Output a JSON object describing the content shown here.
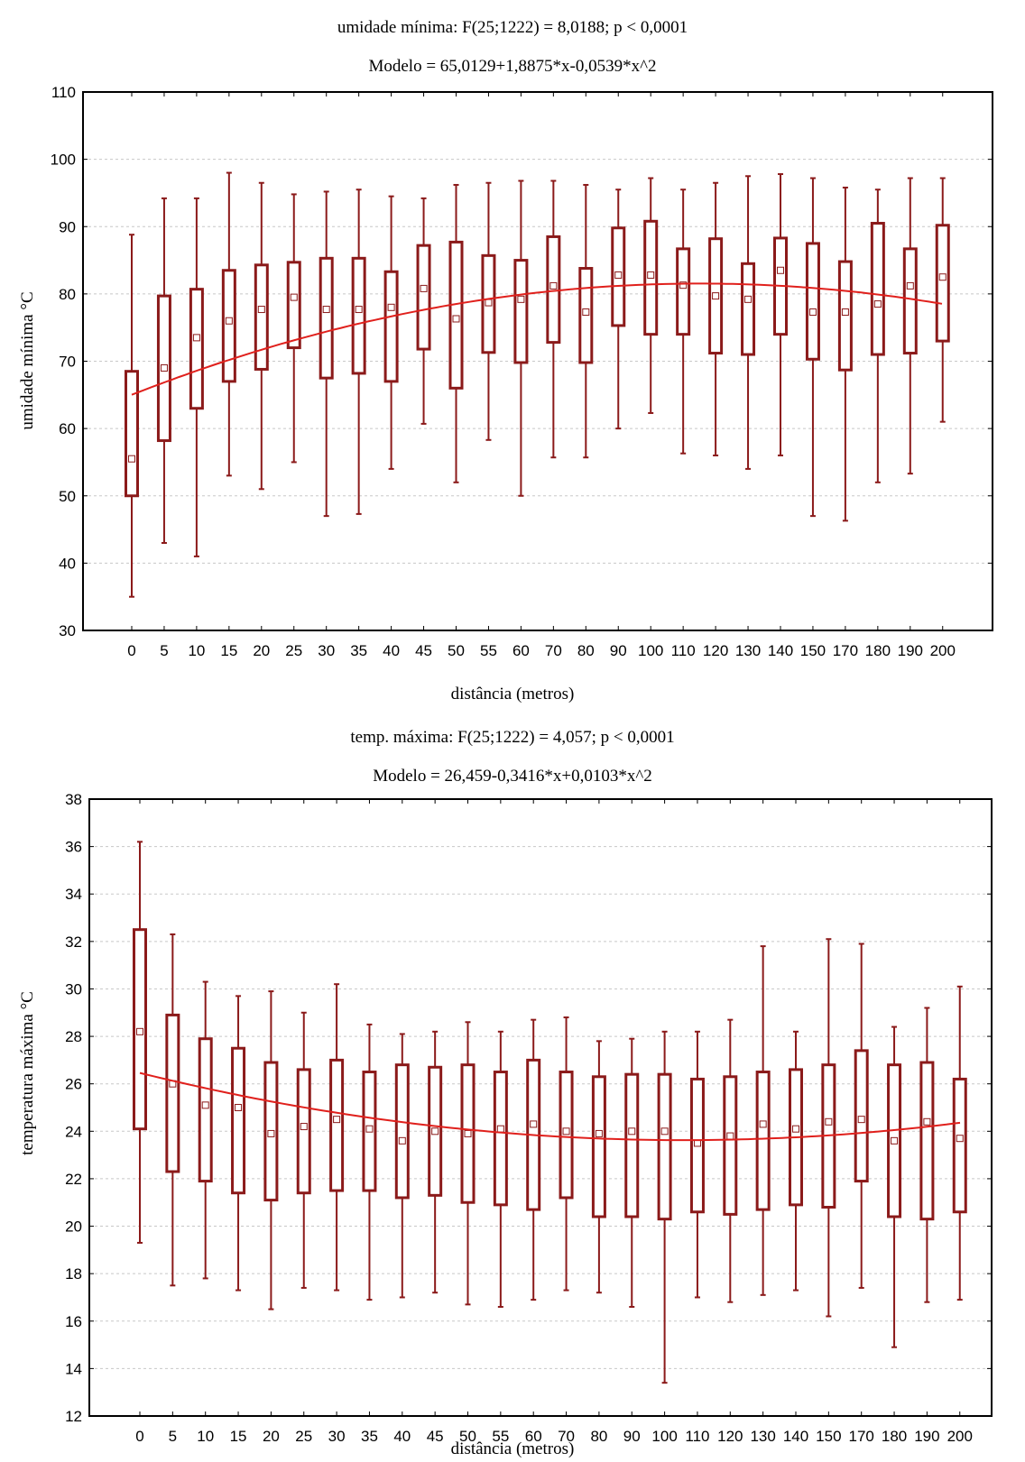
{
  "chart_data": [
    {
      "type": "box",
      "title": "umidade mínima:   F(25;1222) = 8,0188; p < 0,0001",
      "subtitle": "Modelo = 65,0129+1,8875*x-0,0539*x^2",
      "xlabel": "distância (metros)",
      "ylabel": "umidade mínima °C",
      "ylim": [
        30,
        110
      ],
      "yticks": [
        30,
        40,
        50,
        60,
        70,
        80,
        90,
        100,
        110
      ],
      "categories": [
        "0",
        "5",
        "10",
        "15",
        "20",
        "25",
        "30",
        "35",
        "40",
        "45",
        "50",
        "55",
        "60",
        "70",
        "80",
        "90",
        "100",
        "110",
        "120",
        "130",
        "140",
        "150",
        "170",
        "180",
        "190",
        "200"
      ],
      "whisker_low": [
        35,
        43,
        41,
        53,
        51,
        55,
        47,
        47.3,
        54,
        60.7,
        52,
        58.3,
        50,
        55.7,
        55.7,
        60,
        62.3,
        56.3,
        56,
        54,
        56,
        47,
        46.3,
        52,
        53.3,
        61
      ],
      "box_low": [
        50,
        58.2,
        63,
        67,
        68.8,
        72,
        67.5,
        68.2,
        67,
        71.8,
        66,
        71.3,
        69.8,
        72.8,
        69.8,
        75.3,
        74,
        74,
        71.2,
        71,
        74,
        70.3,
        68.7,
        71,
        71.2,
        73
      ],
      "center": [
        55.5,
        69,
        73.5,
        76,
        77.7,
        79.5,
        77.7,
        77.7,
        78,
        80.8,
        76.3,
        78.7,
        79.2,
        81.2,
        77.3,
        82.8,
        82.8,
        81.3,
        79.7,
        79.2,
        83.5,
        77.3,
        77.3,
        78.5,
        81.2,
        82.5
      ],
      "box_high": [
        68.5,
        79.7,
        80.7,
        83.5,
        84.3,
        84.7,
        85.3,
        85.3,
        83.3,
        87.2,
        87.7,
        85.7,
        85,
        88.5,
        83.8,
        89.8,
        90.8,
        86.7,
        88.2,
        84.5,
        88.3,
        87.5,
        84.8,
        90.5,
        86.7,
        90.2
      ],
      "whisker_high": [
        88.8,
        94.2,
        94.2,
        98,
        96.5,
        94.8,
        95.2,
        95.5,
        94.5,
        94.2,
        96.2,
        96.5,
        96.8,
        96.8,
        96.2,
        95.5,
        97.2,
        95.5,
        96.5,
        97.5,
        97.8,
        97.2,
        95.8,
        95.5,
        97.2,
        97.2
      ],
      "model": {
        "a": 65.0129,
        "b": 1.8875,
        "c": -0.0539
      },
      "grid": true,
      "colors": {
        "box": "#8b1a1a",
        "model": "#e0201c",
        "grid": "#c8c8c8"
      }
    },
    {
      "type": "box",
      "title": "temp. máxima:   F(25;1222) = 4,057; p < 0,0001",
      "subtitle": "Modelo = 26,459-0,3416*x+0,0103*x^2",
      "xlabel": "distância (metros)",
      "ylabel": "temperatura máxima °C",
      "ylim": [
        12,
        38
      ],
      "yticks": [
        12,
        14,
        16,
        18,
        20,
        22,
        24,
        26,
        28,
        30,
        32,
        34,
        36,
        38
      ],
      "categories": [
        "0",
        "5",
        "10",
        "15",
        "20",
        "25",
        "30",
        "35",
        "40",
        "45",
        "50",
        "55",
        "60",
        "70",
        "80",
        "90",
        "100",
        "110",
        "120",
        "130",
        "140",
        "150",
        "170",
        "180",
        "190",
        "200"
      ],
      "whisker_low": [
        19.3,
        17.5,
        17.8,
        17.3,
        16.5,
        17.4,
        17.3,
        16.9,
        17,
        17.2,
        16.7,
        16.6,
        16.9,
        17.3,
        17.2,
        16.6,
        13.4,
        17,
        16.8,
        17.1,
        17.3,
        16.2,
        17.4,
        14.9,
        16.8,
        16.9
      ],
      "box_low": [
        24.1,
        22.3,
        21.9,
        21.4,
        21.1,
        21.4,
        21.5,
        21.5,
        21.2,
        21.3,
        21,
        20.9,
        20.7,
        21.2,
        20.4,
        20.4,
        20.3,
        20.6,
        20.5,
        20.7,
        20.9,
        20.8,
        21.9,
        20.4,
        20.3,
        20.6
      ],
      "center": [
        28.2,
        26,
        25.1,
        25,
        23.9,
        24.2,
        24.5,
        24.1,
        23.6,
        24,
        23.9,
        24.1,
        24.3,
        24,
        23.9,
        24,
        24,
        23.5,
        23.8,
        24.3,
        24.1,
        24.4,
        24.5,
        23.6,
        24.4,
        23.7
      ],
      "box_high": [
        32.5,
        28.9,
        27.9,
        27.5,
        26.9,
        26.6,
        27,
        26.5,
        26.8,
        26.7,
        26.8,
        26.5,
        27,
        26.5,
        26.3,
        26.4,
        26.4,
        26.2,
        26.3,
        26.5,
        26.6,
        26.8,
        27.4,
        26.8,
        26.9,
        26.2
      ],
      "whisker_high": [
        36.2,
        32.3,
        30.3,
        29.7,
        29.9,
        29,
        30.2,
        28.5,
        28.1,
        28.2,
        28.6,
        28.2,
        28.7,
        28.8,
        27.8,
        27.9,
        28.2,
        28.2,
        28.7,
        31.8,
        28.2,
        32.1,
        31.9,
        28.4,
        29.2,
        30.1
      ],
      "model": {
        "a": 26.459,
        "b": -0.3416,
        "c": 0.0103
      },
      "grid": true,
      "colors": {
        "box": "#8b1a1a",
        "model": "#e0201c",
        "grid": "#c8c8c8"
      }
    }
  ]
}
